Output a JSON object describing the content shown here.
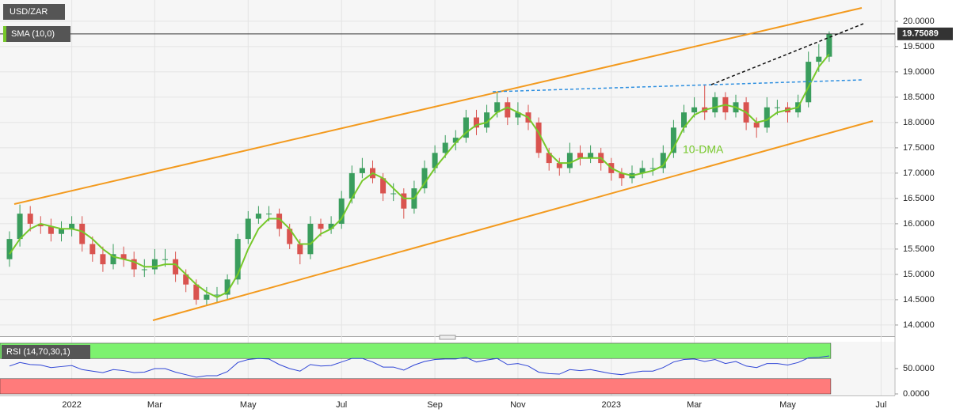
{
  "chart_data": [
    {
      "type": "candlestick",
      "title": "USD/ZAR",
      "indicator": "SMA (10,0)",
      "annotation": "10-DMA",
      "categories": [
        null,
        null,
        null,
        null,
        null,
        null,
        "2022",
        null,
        null,
        null,
        null,
        null,
        null,
        null,
        "Mar",
        null,
        null,
        null,
        null,
        null,
        null,
        null,
        null,
        "May",
        null,
        null,
        null,
        null,
        null,
        null,
        null,
        null,
        "Jul",
        null,
        null,
        null,
        null,
        null,
        null,
        null,
        null,
        "Sep",
        null,
        null,
        null,
        null,
        null,
        null,
        null,
        "Nov",
        null,
        null,
        null,
        null,
        null,
        null,
        null,
        null,
        "2023",
        null,
        null,
        null,
        null,
        null,
        null,
        null,
        "Mar",
        null,
        null,
        null,
        null,
        null,
        null,
        null,
        null,
        "May",
        null,
        null,
        null,
        null,
        null,
        null,
        null,
        null,
        "Jul",
        null
      ],
      "open": [
        15.3,
        15.7,
        16.2,
        16.0,
        15.95,
        15.8,
        15.9,
        16.0,
        15.6,
        15.4,
        15.2,
        15.4,
        15.3,
        15.1,
        15.1,
        15.3,
        15.3,
        15.0,
        14.8,
        14.5,
        14.6,
        14.6,
        14.9,
        15.7,
        16.1,
        16.2,
        16.2,
        15.9,
        15.6,
        15.4,
        16.0,
        15.9,
        16.0,
        16.5,
        17.0,
        17.1,
        16.9,
        16.6,
        16.6,
        16.3,
        16.7,
        17.1,
        17.4,
        17.6,
        17.7,
        18.1,
        17.9,
        18.2,
        18.4,
        18.1,
        18.2,
        18.0,
        17.4,
        17.2,
        17.1,
        17.4,
        17.3,
        17.4,
        17.2,
        17.0,
        16.9,
        17.0,
        17.1,
        17.1,
        17.4,
        17.9,
        18.2,
        18.3,
        18.2,
        18.5,
        18.2,
        18.4,
        18.0,
        17.9,
        18.3,
        18.3,
        18.2,
        18.4,
        19.2,
        19.3,
        null,
        null,
        null,
        null,
        null,
        null
      ],
      "high": [
        15.85,
        16.38,
        16.35,
        16.15,
        16.1,
        16.05,
        16.15,
        16.15,
        15.75,
        15.55,
        15.6,
        15.55,
        15.45,
        15.3,
        15.5,
        15.5,
        15.45,
        15.1,
        14.9,
        14.75,
        14.75,
        15.0,
        15.8,
        16.25,
        16.35,
        16.35,
        16.3,
        16.0,
        15.7,
        16.15,
        16.1,
        16.15,
        16.65,
        17.15,
        17.3,
        17.25,
        17.0,
        16.8,
        16.7,
        16.85,
        17.25,
        17.55,
        17.75,
        17.85,
        18.25,
        18.25,
        18.35,
        18.62,
        18.5,
        18.4,
        18.35,
        18.1,
        17.5,
        17.3,
        17.6,
        17.55,
        17.55,
        17.5,
        17.3,
        17.1,
        17.15,
        17.25,
        17.3,
        17.55,
        18.05,
        18.35,
        18.5,
        18.75,
        18.6,
        18.6,
        18.55,
        18.5,
        18.1,
        18.5,
        18.45,
        18.4,
        18.55,
        19.4,
        19.55,
        19.8,
        null,
        null,
        null,
        null,
        null,
        null
      ],
      "low": [
        15.15,
        15.55,
        15.85,
        15.8,
        15.65,
        15.65,
        15.75,
        15.45,
        15.25,
        15.05,
        15.1,
        15.15,
        14.95,
        14.95,
        15.0,
        15.15,
        14.85,
        14.65,
        14.4,
        14.4,
        14.45,
        14.5,
        14.8,
        15.6,
        16.0,
        16.05,
        15.75,
        15.5,
        15.2,
        15.3,
        15.75,
        15.8,
        15.9,
        16.4,
        16.9,
        16.8,
        16.45,
        16.45,
        16.1,
        16.2,
        16.6,
        17.0,
        17.3,
        17.45,
        17.6,
        17.75,
        17.8,
        18.1,
        17.95,
        17.95,
        17.85,
        17.3,
        17.05,
        16.95,
        17.0,
        17.15,
        17.2,
        17.05,
        16.85,
        16.75,
        16.8,
        16.9,
        16.95,
        17.0,
        17.3,
        17.8,
        18.1,
        18.05,
        18.1,
        18.05,
        18.1,
        17.85,
        17.7,
        17.8,
        18.15,
        18.0,
        18.1,
        18.3,
        19.0,
        19.2,
        null,
        null,
        null,
        null,
        null,
        null
      ],
      "close": [
        15.7,
        16.2,
        16.0,
        15.95,
        15.8,
        15.9,
        16.0,
        15.6,
        15.4,
        15.2,
        15.4,
        15.3,
        15.1,
        15.1,
        15.3,
        15.3,
        15.0,
        14.8,
        14.5,
        14.6,
        14.6,
        14.9,
        15.7,
        16.1,
        16.2,
        16.2,
        15.9,
        15.6,
        15.4,
        16.0,
        15.9,
        16.0,
        16.5,
        17.0,
        17.1,
        16.9,
        16.6,
        16.6,
        16.3,
        16.7,
        17.1,
        17.4,
        17.6,
        17.7,
        18.1,
        17.9,
        18.2,
        18.4,
        18.1,
        18.2,
        18.0,
        17.4,
        17.2,
        17.1,
        17.4,
        17.3,
        17.4,
        17.2,
        17.0,
        16.9,
        17.0,
        17.1,
        17.1,
        17.4,
        17.9,
        18.2,
        18.3,
        18.2,
        18.5,
        18.2,
        18.4,
        18.0,
        17.9,
        18.3,
        18.3,
        18.2,
        18.4,
        19.2,
        19.3,
        19.75,
        null,
        null,
        null,
        null,
        null,
        null
      ],
      "up_color": "#3a9d5d",
      "down_color": "#d9534f",
      "sma": {
        "color": "#76c82a",
        "values": [
          15.4,
          15.7,
          15.9,
          16.0,
          15.95,
          15.9,
          15.9,
          15.85,
          15.7,
          15.5,
          15.35,
          15.3,
          15.25,
          15.15,
          15.15,
          15.2,
          15.2,
          15.0,
          14.8,
          14.65,
          14.55,
          14.65,
          15.0,
          15.5,
          15.9,
          16.1,
          16.1,
          15.9,
          15.6,
          15.6,
          15.8,
          15.9,
          16.1,
          16.5,
          16.85,
          17.0,
          16.9,
          16.7,
          16.5,
          16.5,
          16.8,
          17.1,
          17.35,
          17.6,
          17.8,
          17.95,
          18.0,
          18.2,
          18.3,
          18.2,
          18.1,
          17.8,
          17.4,
          17.2,
          17.2,
          17.3,
          17.3,
          17.3,
          17.1,
          17.0,
          16.95,
          17.0,
          17.05,
          17.15,
          17.5,
          17.9,
          18.15,
          18.25,
          18.3,
          18.35,
          18.3,
          18.2,
          18.0,
          18.05,
          18.2,
          18.25,
          18.3,
          18.7,
          19.1,
          19.35,
          null,
          null,
          null,
          null,
          null,
          null
        ]
      },
      "last_price": 19.75089,
      "ylim": [
        13.78,
        20.42
      ],
      "yticks": [
        {
          "value": 20,
          "label": "20.0000"
        },
        {
          "value": 19.5,
          "label": "19.5000"
        },
        {
          "value": 19,
          "label": "19.0000"
        },
        {
          "value": 18.5,
          "label": "18.5000"
        },
        {
          "value": 18,
          "label": "18.0000"
        },
        {
          "value": 17.5,
          "label": "17.5000"
        },
        {
          "value": 17,
          "label": "17.0000"
        },
        {
          "value": 16.5,
          "label": "16.5000"
        },
        {
          "value": 16,
          "label": "16.0000"
        },
        {
          "value": 15.5,
          "label": "15.5000"
        },
        {
          "value": 15,
          "label": "15.0000"
        },
        {
          "value": 14.5,
          "label": "14.5000"
        },
        {
          "value": 14,
          "label": "14.0000"
        }
      ],
      "grid": true
    },
    {
      "type": "line",
      "title": "RSI (14,70,30,1)",
      "series": [
        {
          "color": "#2f45d6",
          "values": [
            55,
            62,
            58,
            57,
            52,
            54,
            56,
            48,
            45,
            42,
            48,
            46,
            42,
            43,
            50,
            50,
            43,
            38,
            33,
            36,
            36,
            44,
            62,
            68,
            70,
            69,
            58,
            50,
            45,
            58,
            55,
            56,
            63,
            70,
            70,
            63,
            53,
            53,
            47,
            57,
            64,
            68,
            69,
            69,
            72,
            63,
            67,
            70,
            58,
            60,
            55,
            43,
            40,
            39,
            48,
            46,
            48,
            44,
            40,
            38,
            42,
            45,
            45,
            52,
            63,
            68,
            69,
            64,
            68,
            60,
            64,
            55,
            52,
            60,
            60,
            57,
            62,
            71,
            72,
            75,
            null,
            null,
            null,
            null,
            null,
            null
          ]
        }
      ],
      "overbought": 70,
      "oversold": 30,
      "ylim": [
        -3.1,
        103.1
      ],
      "yticks": [
        {
          "value": 50,
          "label": "50.0000"
        },
        {
          "value": 0,
          "label": "0.0000"
        }
      ]
    }
  ]
}
